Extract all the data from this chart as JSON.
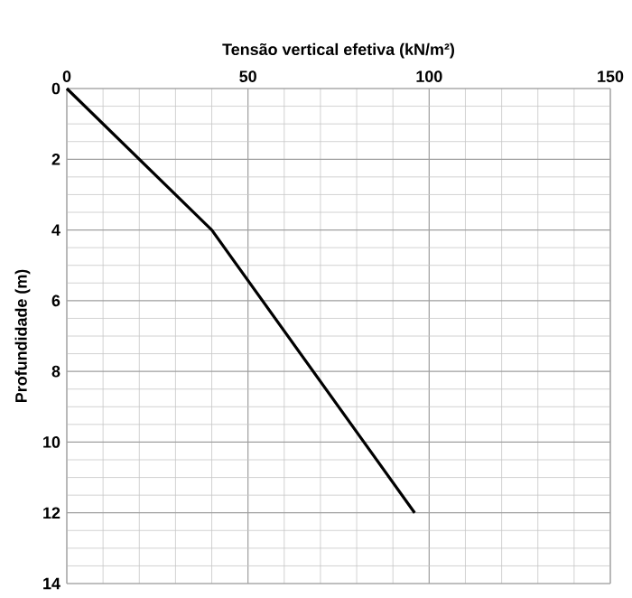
{
  "chart_data": {
    "type": "line",
    "xlabel": "Tensão vertical efetiva (kN/m²)",
    "ylabel": "Profundidade (m)",
    "x": [
      0,
      40,
      96
    ],
    "series": [
      {
        "color": "#000000",
        "values": [
          0,
          4,
          12
        ]
      }
    ],
    "xlim": [
      0,
      150
    ],
    "xticks": [
      0,
      50,
      100,
      150
    ],
    "ylim": [
      14,
      0
    ],
    "yticks": [
      0,
      2,
      4,
      6,
      8,
      10,
      12,
      14
    ],
    "grid": true,
    "marker": "none",
    "line_style": "solid"
  }
}
